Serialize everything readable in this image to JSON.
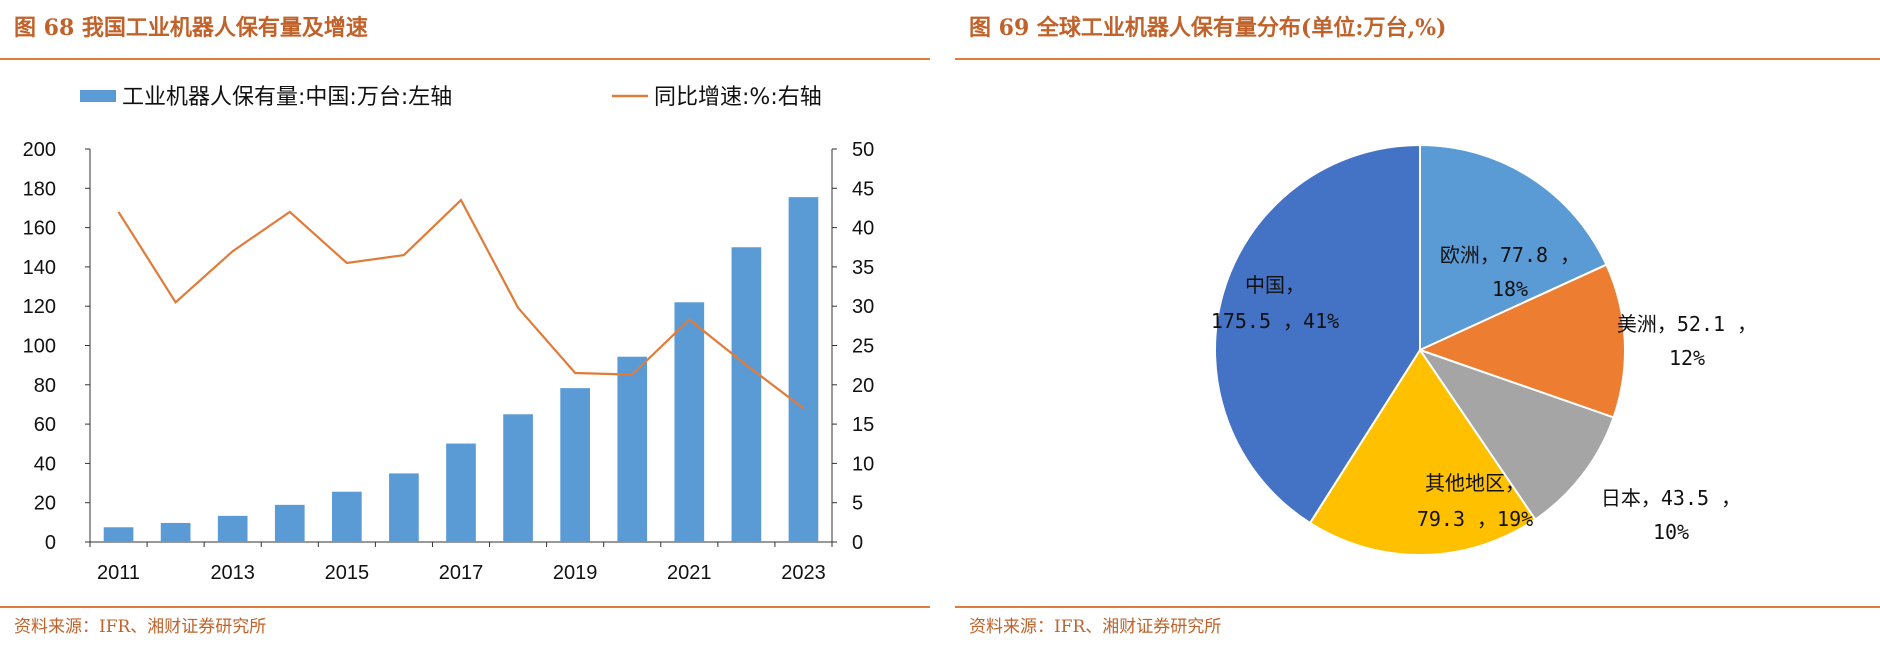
{
  "left": {
    "title": "图 68 我国工业机器人保有量及增速",
    "source": "资料来源：IFR、湘财证券研究所"
  },
  "right": {
    "title": "图 69 全球工业机器人保有量分布(单位:万台,%)",
    "source": "资料来源：IFR、湘财证券研究所"
  },
  "colors": {
    "accent": "#e07b39",
    "bar": "#5b9bd5",
    "line": "#e07b39"
  },
  "chart_data": [
    {
      "type": "bar",
      "x": [
        2011,
        2012,
        2013,
        2014,
        2015,
        2016,
        2017,
        2018,
        2019,
        2020,
        2021,
        2022,
        2023
      ],
      "x_tick_labels": [
        "2011",
        "2013",
        "2015",
        "2017",
        "2019",
        "2021",
        "2023"
      ],
      "series": [
        {
          "name": "工业机器人保有量:中国:万台:左轴",
          "type": "bar",
          "axis": "left",
          "values": [
            7.5,
            9.7,
            13.3,
            18.9,
            25.6,
            34.9,
            50.1,
            65.0,
            78.3,
            94.3,
            122.0,
            150.0,
            175.5
          ]
        },
        {
          "name": "同比增速:%:右轴",
          "type": "line",
          "axis": "right",
          "values": [
            42.0,
            30.5,
            37.0,
            42.0,
            35.5,
            36.5,
            43.5,
            29.8,
            21.5,
            21.3,
            28.3,
            22.5,
            17.0
          ]
        }
      ],
      "y_left": {
        "lim": [
          0,
          200
        ],
        "ticks": [
          0,
          20,
          40,
          60,
          80,
          100,
          120,
          140,
          160,
          180,
          200
        ]
      },
      "y_right": {
        "lim": [
          0,
          50
        ],
        "ticks": [
          0,
          5,
          10,
          15,
          20,
          25,
          30,
          35,
          40,
          45,
          50
        ]
      },
      "legend": "top"
    },
    {
      "type": "pie",
      "slices": [
        {
          "name": "欧洲",
          "value": 77.8,
          "percent": "18%",
          "color": "#5b9bd5",
          "label_line1": "欧洲，77.8 ，",
          "label_line2": "18%"
        },
        {
          "name": "美洲",
          "value": 52.1,
          "percent": "12%",
          "color": "#ed7d31",
          "label_line1": "美洲，52.1 ，",
          "label_line2": "12%"
        },
        {
          "name": "日本",
          "value": 43.5,
          "percent": "10%",
          "color": "#a5a5a5",
          "label_line1": "日本，43.5 ，",
          "label_line2": "10%"
        },
        {
          "name": "其他地区",
          "value": 79.3,
          "percent": "19%",
          "color": "#ffc000",
          "label_line1": "其他地区，",
          "label_line2": "79.3 ，19%"
        },
        {
          "name": "中国",
          "value": 175.5,
          "percent": "41%",
          "color": "#4472c4",
          "label_line1": "中国，",
          "label_line2": "175.5 ，41%"
        }
      ]
    }
  ]
}
